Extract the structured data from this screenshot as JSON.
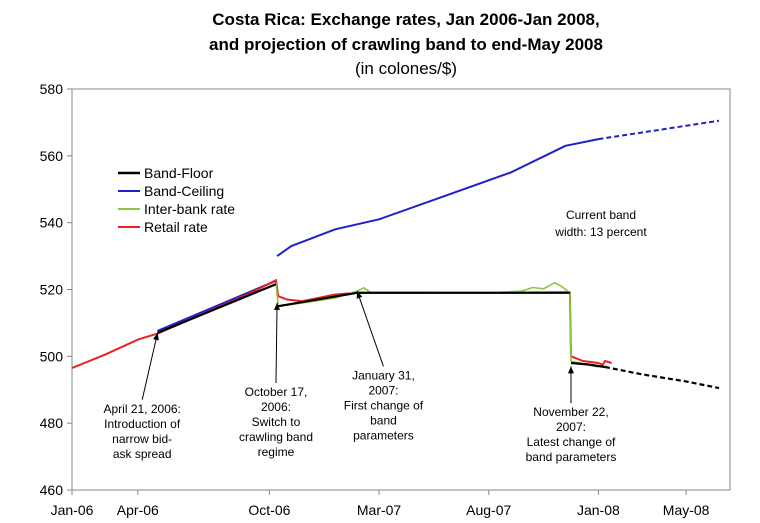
{
  "chart_data": {
    "type": "line",
    "title": "Costa Rica: Exchange rates, Jan 2006-Jan 2008,",
    "title_line2": "and projection of crawling band to end-May 2008",
    "subtitle": "(in colones/$)",
    "xlabel": "",
    "ylabel": "",
    "ylim": [
      460,
      580
    ],
    "yticks": [
      "460",
      "480",
      "500",
      "520",
      "540",
      "560",
      "580"
    ],
    "xticks": [
      {
        "label": "Jan-06",
        "x": 0
      },
      {
        "label": "Apr-06",
        "x": 3
      },
      {
        "label": "Oct-06",
        "x": 9
      },
      {
        "label": "Mar-07",
        "x": 14
      },
      {
        "label": "Aug-07",
        "x": 19
      },
      {
        "label": "Jan-08",
        "x": 24
      },
      {
        "label": "May-08",
        "x": 28
      }
    ],
    "xlim": [
      0,
      30
    ],
    "grid": false,
    "legend_position": "upper-left",
    "series": [
      {
        "name": "Band-Floor",
        "color": "#000000",
        "width": 2.2,
        "points": [
          [
            3.9,
            507.0
          ],
          [
            9.3,
            521.6
          ]
        ],
        "points2": [
          [
            9.4,
            515.0
          ],
          [
            13.0,
            519.0
          ],
          [
            22.7,
            519.0
          ]
        ],
        "points3": [
          [
            22.75,
            498.0
          ],
          [
            23.5,
            497.6
          ],
          [
            24.3,
            496.8
          ]
        ],
        "projected": [
          [
            24.3,
            496.8
          ],
          [
            26.0,
            494.6
          ],
          [
            28.0,
            492.5
          ],
          [
            29.5,
            490.5
          ]
        ]
      },
      {
        "name": "Band-Ceiling",
        "color": "#1f1fcc",
        "width": 2,
        "points": [
          [
            3.9,
            507.6
          ],
          [
            9.3,
            522.6
          ]
        ],
        "points2": [
          [
            9.35,
            530.0
          ],
          [
            10.0,
            533.0
          ],
          [
            12.0,
            538.0
          ],
          [
            14.0,
            541.0
          ],
          [
            17.0,
            548.0
          ],
          [
            20.0,
            555.0
          ],
          [
            22.5,
            563.0
          ],
          [
            24.0,
            565.0
          ]
        ],
        "projected": [
          [
            24.0,
            565.0
          ],
          [
            26.5,
            567.5
          ],
          [
            29.5,
            570.5
          ]
        ]
      },
      {
        "name": "Inter-bank rate",
        "color": "#8dc63f",
        "width": 1.6,
        "points": [
          [
            9.3,
            522.0
          ],
          [
            9.4,
            515.0
          ],
          [
            10.5,
            516.0
          ],
          [
            12.0,
            517.5
          ],
          [
            13.0,
            519.5
          ],
          [
            13.3,
            520.5
          ],
          [
            13.6,
            519.2
          ],
          [
            16.0,
            519.2
          ],
          [
            19.0,
            519.0
          ],
          [
            20.5,
            519.5
          ],
          [
            21.0,
            520.6
          ],
          [
            21.5,
            520.2
          ],
          [
            22.0,
            522.0
          ],
          [
            22.3,
            521.0
          ],
          [
            22.7,
            519.0
          ],
          [
            22.75,
            498.5
          ],
          [
            23.5,
            497.5
          ],
          [
            24.0,
            496.8
          ]
        ]
      },
      {
        "name": "Retail rate",
        "color": "#e8201f",
        "width": 2,
        "points": [
          [
            0,
            496.5
          ],
          [
            1.5,
            500.5
          ],
          [
            3.0,
            505.0
          ],
          [
            3.9,
            506.8
          ],
          [
            6.0,
            512.8
          ],
          [
            8.0,
            518.5
          ],
          [
            9.3,
            522.8
          ],
          [
            9.4,
            518.0
          ],
          [
            9.8,
            517.0
          ],
          [
            10.5,
            516.5
          ],
          [
            12.0,
            518.5
          ],
          [
            13.0,
            519.0
          ],
          [
            16.0,
            519.0
          ],
          [
            19.0,
            519.0
          ],
          [
            22.7,
            519.2
          ],
          [
            22.75,
            500.0
          ],
          [
            23.3,
            498.6
          ],
          [
            24.0,
            498.0
          ],
          [
            24.2,
            497.5
          ],
          [
            24.3,
            498.6
          ],
          [
            24.6,
            498.0
          ]
        ]
      }
    ],
    "annotations": [
      {
        "lines": [
          "April 21, 2006:",
          "Introduction of",
          "narrow bid-",
          "ask spread"
        ],
        "target": [
          3.9,
          507.0
        ],
        "anchor": [
          3.2,
          487.0
        ]
      },
      {
        "lines": [
          "October 17,",
          "2006:",
          "Switch to",
          "crawling band",
          "regime"
        ],
        "target": [
          9.35,
          516.0
        ],
        "anchor": [
          9.3,
          492.0
        ]
      },
      {
        "lines": [
          "January 31,",
          "2007:",
          "First change of",
          "band",
          "parameters"
        ],
        "target": [
          13.0,
          519.5
        ],
        "anchor": [
          14.2,
          497.0
        ]
      },
      {
        "lines": [
          "November 22,",
          "2007:",
          "Latest change of",
          "band parameters"
        ],
        "target": [
          22.75,
          497.0
        ],
        "anchor": [
          22.75,
          486.0
        ]
      }
    ],
    "note_lines": [
      "Current band",
      "width: 13 percent"
    ]
  }
}
